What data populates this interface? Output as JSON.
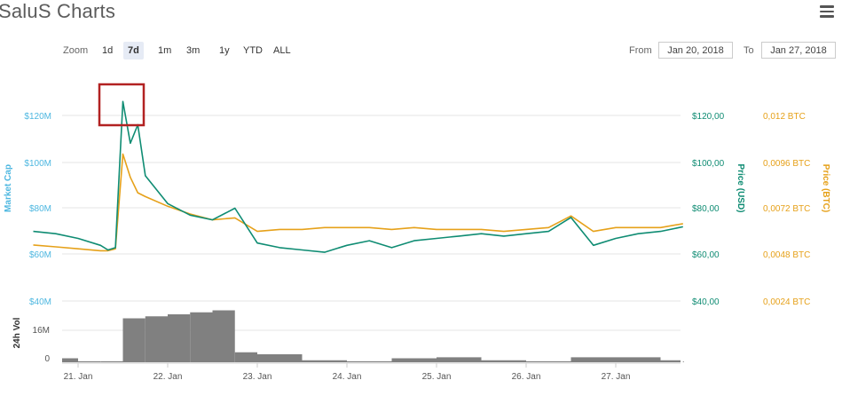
{
  "header": {
    "title": "SaluS Charts"
  },
  "zoom": {
    "label": "Zoom",
    "buttons": [
      "1d",
      "7d",
      "1m",
      "3m",
      "1y",
      "YTD",
      "ALL"
    ],
    "active": "7d"
  },
  "range": {
    "from_label": "From",
    "from_value": "Jan 20, 2018",
    "to_label": "To",
    "to_value": "Jan 27, 2018"
  },
  "colors": {
    "market_cap": "#4db7e0",
    "price_usd": "#0f8c73",
    "price_btc": "#e6a11a",
    "volume": "#808080",
    "highlight_box": "#b22222",
    "grid": "#e6e6e6"
  },
  "chart_data": {
    "type": "line",
    "x_type": "datetime",
    "x_ticks": [
      "21. Jan",
      "22. Jan",
      "23. Jan",
      "24. Jan",
      "25. Jan",
      "26. Jan",
      "27. Jan"
    ],
    "axes": {
      "market_cap": {
        "label": "Market Cap",
        "ticks": [
          "$120M",
          "$100M",
          "$80M",
          "$60M",
          "$40M"
        ]
      },
      "price_usd": {
        "label": "Price (USD)",
        "ticks": [
          "$120,00",
          "$100,00",
          "$80,00",
          "$60,00",
          "$40,00"
        ],
        "range": [
          40,
          120
        ]
      },
      "price_btc": {
        "label": "Price (BTC)",
        "ticks": [
          "0,012 BTC",
          "0,0096 BTC",
          "0,0072 BTC",
          "0,0048 BTC",
          "0,0024 BTC"
        ],
        "range": [
          0.0024,
          0.012
        ]
      },
      "volume": {
        "label": "24h Vol",
        "ticks": [
          "16M",
          "0"
        ]
      }
    },
    "series": [
      {
        "name": "Price (USD)",
        "x": [
          "2018-01-20 12:00",
          "2018-01-20 18:00",
          "2018-01-21 00:00",
          "2018-01-21 06:00",
          "2018-01-21 08:00",
          "2018-01-21 10:00",
          "2018-01-21 12:00",
          "2018-01-21 14:00",
          "2018-01-21 16:00",
          "2018-01-21 18:00",
          "2018-01-22 00:00",
          "2018-01-22 06:00",
          "2018-01-22 12:00",
          "2018-01-22 18:00",
          "2018-01-23 00:00",
          "2018-01-23 06:00",
          "2018-01-23 12:00",
          "2018-01-23 18:00",
          "2018-01-24 00:00",
          "2018-01-24 06:00",
          "2018-01-24 12:00",
          "2018-01-24 18:00",
          "2018-01-25 00:00",
          "2018-01-25 06:00",
          "2018-01-25 12:00",
          "2018-01-25 18:00",
          "2018-01-26 00:00",
          "2018-01-26 06:00",
          "2018-01-26 12:00",
          "2018-01-26 18:00",
          "2018-01-27 00:00",
          "2018-01-27 06:00",
          "2018-01-27 12:00",
          "2018-01-27 18:00"
        ],
        "values": [
          70,
          69,
          67,
          64,
          62,
          63,
          126,
          108,
          116,
          94,
          82,
          77,
          75,
          80,
          65,
          63,
          62,
          61,
          64,
          66,
          63,
          66,
          67,
          68,
          69,
          68,
          69,
          70,
          76,
          64,
          67,
          69,
          70,
          72
        ]
      },
      {
        "name": "Price (BTC)",
        "x": [
          "2018-01-20 12:00",
          "2018-01-20 18:00",
          "2018-01-21 00:00",
          "2018-01-21 06:00",
          "2018-01-21 08:00",
          "2018-01-21 10:00",
          "2018-01-21 12:00",
          "2018-01-21 14:00",
          "2018-01-21 16:00",
          "2018-01-21 18:00",
          "2018-01-22 00:00",
          "2018-01-22 06:00",
          "2018-01-22 12:00",
          "2018-01-22 18:00",
          "2018-01-23 00:00",
          "2018-01-23 06:00",
          "2018-01-23 12:00",
          "2018-01-23 18:00",
          "2018-01-24 00:00",
          "2018-01-24 06:00",
          "2018-01-24 12:00",
          "2018-01-24 18:00",
          "2018-01-25 00:00",
          "2018-01-25 06:00",
          "2018-01-25 12:00",
          "2018-01-25 18:00",
          "2018-01-26 00:00",
          "2018-01-26 06:00",
          "2018-01-26 12:00",
          "2018-01-26 18:00",
          "2018-01-27 00:00",
          "2018-01-27 06:00",
          "2018-01-27 12:00",
          "2018-01-27 18:00"
        ],
        "values": [
          0.0053,
          0.0052,
          0.0051,
          0.005,
          0.005,
          0.0051,
          0.01,
          0.0088,
          0.008,
          0.0078,
          0.0073,
          0.0069,
          0.0066,
          0.0067,
          0.006,
          0.0061,
          0.0061,
          0.0062,
          0.0062,
          0.0062,
          0.0061,
          0.0062,
          0.0061,
          0.0061,
          0.0061,
          0.006,
          0.0061,
          0.0062,
          0.0068,
          0.006,
          0.0062,
          0.0062,
          0.0062,
          0.0064
        ]
      }
    ],
    "volume_series": {
      "name": "24h Vol",
      "x": [
        "2018-01-20 12:00",
        "2018-01-21 00:00",
        "2018-01-21 06:00",
        "2018-01-21 12:00",
        "2018-01-21 18:00",
        "2018-01-22 00:00",
        "2018-01-22 06:00",
        "2018-01-22 12:00",
        "2018-01-22 18:00",
        "2018-01-23 00:00",
        "2018-01-23 12:00",
        "2018-01-24 00:00",
        "2018-01-24 12:00",
        "2018-01-25 00:00",
        "2018-01-25 12:00",
        "2018-01-26 00:00",
        "2018-01-26 12:00",
        "2018-01-27 00:00",
        "2018-01-27 12:00",
        "2018-01-27 18:00"
      ],
      "values": [
        2.0,
        0.5,
        0.5,
        22,
        23,
        24,
        25,
        26,
        5,
        4,
        1,
        0.5,
        2,
        2.5,
        1,
        0.5,
        2.5,
        2.5,
        1,
        0.5
      ]
    }
  }
}
